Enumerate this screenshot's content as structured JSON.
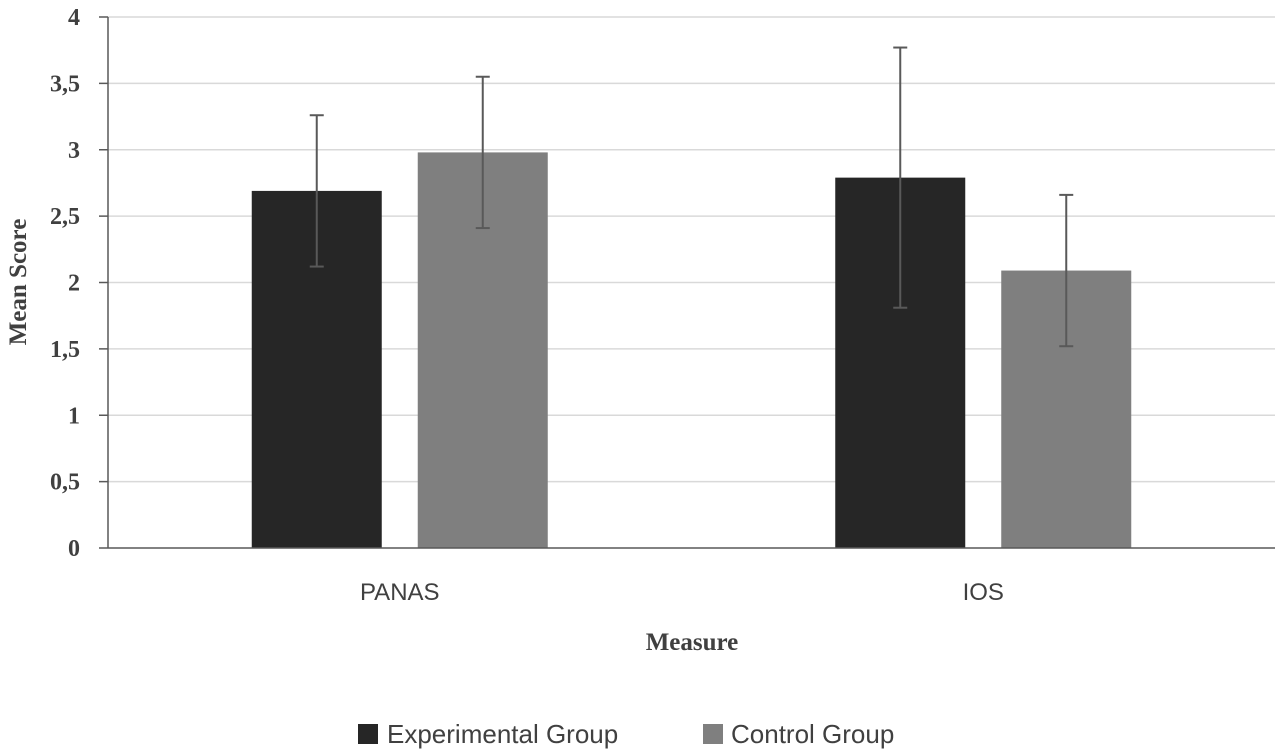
{
  "chart_data": {
    "type": "bar",
    "title": "",
    "xlabel": "Measure",
    "ylabel": "Mean Score",
    "ylim": [
      0,
      4
    ],
    "ytick_values": [
      0,
      0.5,
      1,
      1.5,
      2,
      2.5,
      3,
      3.5,
      4
    ],
    "ytick_labels": [
      "0",
      "0,5",
      "1",
      "1,5",
      "2",
      "2,5",
      "3",
      "3,5",
      "4"
    ],
    "grid": true,
    "legend_position": "bottom",
    "categories": [
      "PANAS",
      "IOS"
    ],
    "series": [
      {
        "name": "Experimental Group",
        "color": "#262626",
        "values": [
          2.69,
          2.79
        ],
        "error": [
          0.57,
          0.98
        ]
      },
      {
        "name": "Control Group",
        "color": "#7f7f7f",
        "values": [
          2.98,
          2.09
        ],
        "error": [
          0.57,
          0.57
        ]
      }
    ]
  }
}
